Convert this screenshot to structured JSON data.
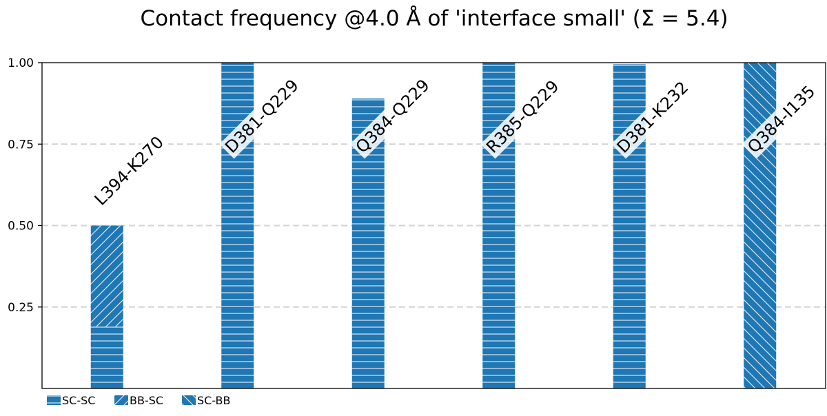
{
  "chart_data": {
    "type": "bar",
    "stacked": true,
    "title": "Contact frequency @4.0 Å of 'interface small' (Σ = 5.4)",
    "xlabel": "",
    "ylabel": "",
    "ylim": [
      0,
      1.0
    ],
    "yticks": [
      {
        "value": 0.25,
        "label": "0.25"
      },
      {
        "value": 0.5,
        "label": "0.50"
      },
      {
        "value": 0.75,
        "label": "0.75"
      },
      {
        "value": 1.0,
        "label": "1.00"
      }
    ],
    "grid": "horizontal dashed",
    "legend_position": "bottom-left",
    "bar_color": "#1f77b4",
    "hatch_color": "#dbe7f3",
    "series": [
      {
        "name": "SC-SC",
        "hatch": "horizontal"
      },
      {
        "name": "BB-SC",
        "hatch": "forward-diagonal"
      },
      {
        "name": "SC-BB",
        "hatch": "back-diagonal"
      }
    ],
    "categories": [
      "L394-K270",
      "D381-Q229",
      "Q384-Q229",
      "R385-Q229",
      "D381-K232",
      "Q384-I135"
    ],
    "values": {
      "SC-SC": [
        0.19,
        1.0,
        0.89,
        1.0,
        0.995,
        0.0
      ],
      "BB-SC": [
        0.31,
        0.0,
        0.0,
        0.0,
        0.0,
        0.0
      ],
      "SC-BB": [
        0.0,
        0.0,
        0.0,
        0.0,
        0.0,
        1.0
      ]
    }
  }
}
